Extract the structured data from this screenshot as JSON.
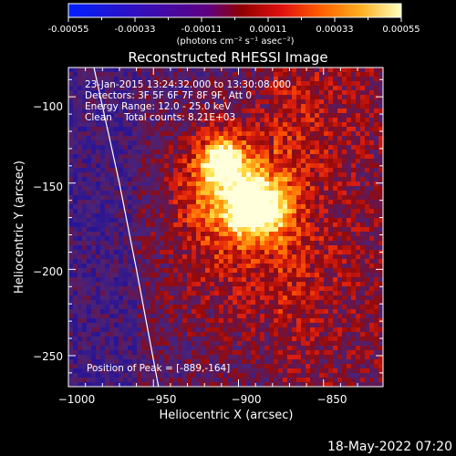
{
  "colorbar": {
    "ticks": [
      "-0.00055",
      "-0.00033",
      "-0.00011",
      "0.00011",
      "0.00033",
      "0.00055"
    ],
    "unit": "(photons cm⁻² s⁻¹ asec⁻²)",
    "range": [
      -0.00055,
      0.00055
    ]
  },
  "info": {
    "time": "23-Jan-2015 13:24:32.000 to 13:30:08.000",
    "detectors": "Detectors: 3F 5F 6F 7F 8F 9F, Att 0",
    "energy": "Energy Range: 12.0 - 25.0 keV",
    "clean": "Clean    Total counts: 8.21E+03",
    "peak": "Position of Peak = [-889,-164]"
  },
  "footer": {
    "date": "18-May-2022 07:20"
  },
  "chart_data": {
    "type": "heatmap",
    "title": "Reconstructed RHESSI Image",
    "xlabel": "Heliocentric X (arcsec)",
    "ylabel": "Heliocentric Y (arcsec)",
    "xlim": [
      -1000,
      -815
    ],
    "ylim": [
      -268,
      -83
    ],
    "xticks": [
      -1000,
      -950,
      -900,
      -850
    ],
    "yticks": [
      -250,
      -200,
      -150,
      -100
    ],
    "xtick_labels": [
      "−1000",
      "−950",
      "−900",
      "−850"
    ],
    "ytick_labels": [
      "−250",
      "−200",
      "−150",
      "−100"
    ],
    "peak": [
      -889,
      -164
    ],
    "limb_x_at_y": [
      [
        -985,
        -83
      ],
      [
        -970,
        -150
      ],
      [
        -960,
        -200
      ],
      [
        -947,
        -268
      ]
    ],
    "colormap_stops": [
      "#0000ff",
      "#4b0082",
      "#800000",
      "#ff2000",
      "#ff9000",
      "#ffff60",
      "#ffffff"
    ]
  }
}
